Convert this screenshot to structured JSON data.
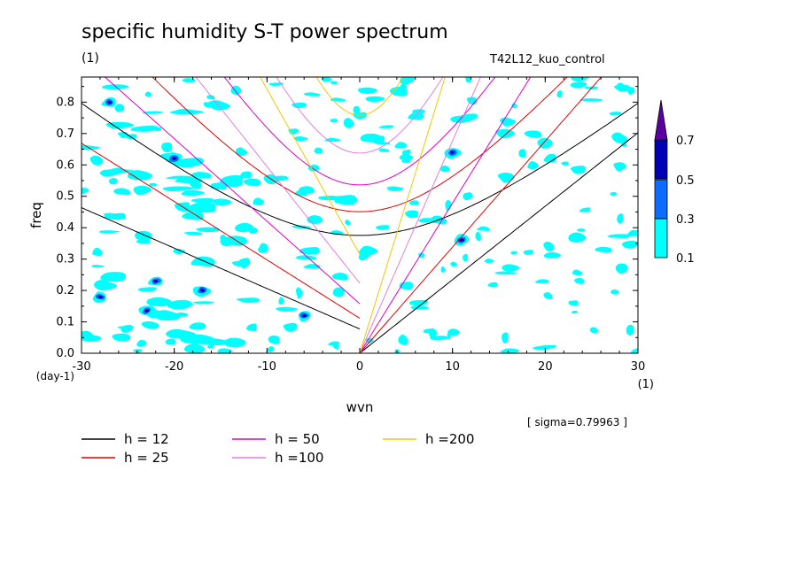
{
  "chart_data": {
    "type": "heatmap",
    "title": "specific humidity S-T power spectrum",
    "units_label": "(1)",
    "run_label": "T42L12_kuo_control",
    "xlabel": "wvn",
    "x_unit": "(1)",
    "ylabel": "freq",
    "y_unit": "(day-1)",
    "xlim": [
      -30,
      30
    ],
    "ylim": [
      0,
      0.88
    ],
    "xticks": [
      "-30",
      "-20",
      "-10",
      "0",
      "10",
      "20",
      "30"
    ],
    "yticks": [
      "0.0",
      "0.1",
      "0.2",
      "0.3",
      "0.4",
      "0.5",
      "0.6",
      "0.7",
      "0.8"
    ],
    "sigma_label": "[ sigma=0.79963 ]",
    "colorbar": {
      "levels": [
        "0.1",
        "0.3",
        "0.5",
        "0.7"
      ],
      "colors": [
        "#00ffff",
        "#0a6dff",
        "#0000b4",
        "#5a009f"
      ]
    },
    "dispersion_curves": [
      {
        "label": "h = 12",
        "h": 12,
        "color": "#000000"
      },
      {
        "label": "h = 25",
        "h": 25,
        "color": "#e00000"
      },
      {
        "label": "h = 50",
        "h": 50,
        "color": "#e000c8"
      },
      {
        "label": "h =100",
        "h": 100,
        "color": "#e27fdd"
      },
      {
        "label": "h =200",
        "h": 200,
        "color": "#f0c800"
      }
    ]
  }
}
